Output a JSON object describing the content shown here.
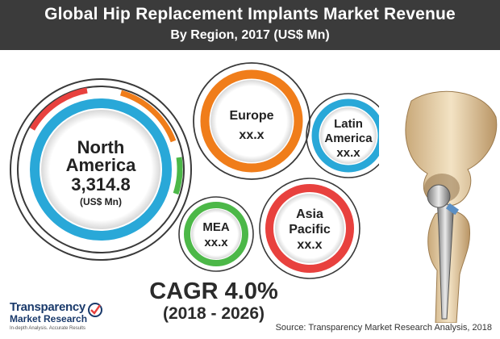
{
  "header": {
    "title": "Global Hip Replacement Implants Market Revenue",
    "subtitle": "By Region, 2017 (US$ Mn)"
  },
  "chart_data": {
    "type": "bubble",
    "title": "Global Hip Replacement Implants Market Revenue",
    "subtitle": "By Region, 2017 (US$ Mn)",
    "categories": [
      "North America",
      "Europe",
      "Latin America",
      "Asia Pacific",
      "MEA"
    ],
    "values": [
      3314.8,
      null,
      null,
      null,
      null
    ],
    "regions": [
      {
        "line1": "North",
        "line2": "America",
        "value_label": "3,314.8",
        "unit": "(US$ Mn)",
        "ring_color": "#29a8d8"
      },
      {
        "line1": "Europe",
        "line2": "",
        "value_label": "xx.x",
        "ring_color": "#f07d1a"
      },
      {
        "line1": "Latin",
        "line2": "America",
        "value_label": "xx.x",
        "ring_color": "#29a8d8"
      },
      {
        "line1": "Asia",
        "line2": "Pacific",
        "value_label": "xx.x",
        "ring_color": "#e8413e"
      },
      {
        "line1": "MEA",
        "line2": "",
        "value_label": "xx.x",
        "ring_color": "#4cb848"
      }
    ]
  },
  "cagr": {
    "label": "CAGR 4.0%",
    "period": "(2018 - 2026)"
  },
  "logo": {
    "name_line1": "Transparency",
    "name_line2": "Market Research",
    "tagline": "In-depth Analysis. Accurate Results",
    "icon": "tmr-logo-icon"
  },
  "source": "Source: Transparency Market Research Analysis, 2018",
  "illustration": "hip-implant-icon",
  "colors": {
    "banner": "#3b3b3b",
    "blue": "#29a8d8",
    "orange": "#f07d1a",
    "red": "#e8413e",
    "green": "#4cb848"
  }
}
